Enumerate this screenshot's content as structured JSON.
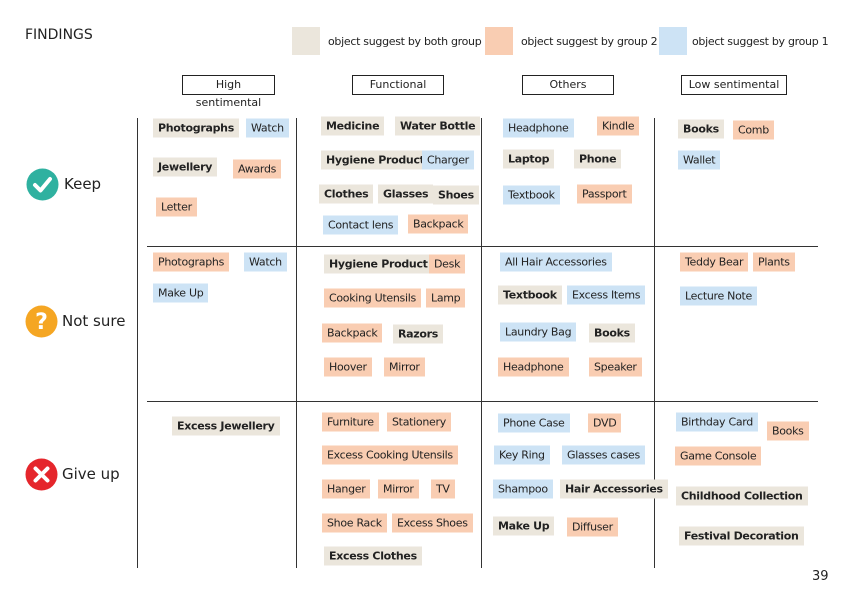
{
  "header": {
    "title": "FINDINGS"
  },
  "legend": [
    {
      "text": "object suggest by both group",
      "color": "#ebe6dc"
    },
    {
      "text": "object suggest by group 2",
      "color": "#f9cdb2"
    },
    {
      "text": "object suggest by group 1",
      "color": "#cde3f5"
    }
  ],
  "columns": [
    "High sentimental",
    "Functional",
    "Others",
    "Low sentimental"
  ],
  "rows": [
    {
      "label": "Keep",
      "cells": [
        [
          {
            "text": "Photographs",
            "color": "#ebe6dc"
          },
          {
            "text": "Watch",
            "color": "#cde3f5"
          },
          {
            "text": "Jewellery",
            "color": "#ebe6dc"
          },
          {
            "text": "Awards",
            "color": "#f9cdb2"
          },
          {
            "text": "Letter",
            "color": "#f9cdb2"
          }
        ],
        [
          {
            "text": "Medicine",
            "color": "#ebe6dc"
          },
          {
            "text": "Water Bottle",
            "color": "#ebe6dc"
          },
          {
            "text": "Hygiene Product",
            "color": "#ebe6dc"
          },
          {
            "text": "Charger",
            "color": "#cde3f5"
          },
          {
            "text": "Clothes",
            "color": "#ebe6dc"
          },
          {
            "text": "Glasses",
            "color": "#ebe6dc"
          },
          {
            "text": "Shoes",
            "color": "#ebe6dc"
          },
          {
            "text": "Contact lens",
            "color": "#cde3f5"
          },
          {
            "text": "Backpack",
            "color": "#f9cdb2"
          }
        ],
        [
          {
            "text": "Headphone",
            "color": "#cde3f5"
          },
          {
            "text": "Kindle",
            "color": "#f9cdb2"
          },
          {
            "text": "Laptop",
            "color": "#ebe6dc"
          },
          {
            "text": "Phone",
            "color": "#ebe6dc"
          },
          {
            "text": "Textbook",
            "color": "#cde3f5"
          },
          {
            "text": "Passport",
            "color": "#f9cdb2"
          }
        ],
        [
          {
            "text": "Books",
            "color": "#ebe6dc"
          },
          {
            "text": "Comb",
            "color": "#f9cdb2"
          },
          {
            "text": "Wallet",
            "color": "#cde3f5"
          }
        ]
      ]
    },
    {
      "label": "Not sure",
      "cells": [
        [
          {
            "text": "Photographs",
            "color": "#f9cdb2"
          },
          {
            "text": "Watch",
            "color": "#cde3f5"
          },
          {
            "text": "Make Up",
            "color": "#cde3f5"
          }
        ],
        [
          {
            "text": "Hygiene Product",
            "color": "#ebe6dc"
          },
          {
            "text": "Desk",
            "color": "#f9cdb2"
          },
          {
            "text": "Cooking Utensils",
            "color": "#f9cdb2"
          },
          {
            "text": "Lamp",
            "color": "#f9cdb2"
          },
          {
            "text": "Backpack",
            "color": "#f9cdb2"
          },
          {
            "text": "Razors",
            "color": "#ebe6dc"
          },
          {
            "text": "Hoover",
            "color": "#f9cdb2"
          },
          {
            "text": "Mirror",
            "color": "#f9cdb2"
          }
        ],
        [
          {
            "text": "All Hair Accessories",
            "color": "#cde3f5"
          },
          {
            "text": "Textbook",
            "color": "#ebe6dc"
          },
          {
            "text": "Excess Items",
            "color": "#cde3f5"
          },
          {
            "text": "Laundry Bag",
            "color": "#cde3f5"
          },
          {
            "text": "Books",
            "color": "#ebe6dc"
          },
          {
            "text": "Headphone",
            "color": "#f9cdb2"
          },
          {
            "text": "Speaker",
            "color": "#f9cdb2"
          }
        ],
        [
          {
            "text": "Teddy Bear",
            "color": "#f9cdb2"
          },
          {
            "text": "Plants",
            "color": "#f9cdb2"
          },
          {
            "text": "Lecture Note",
            "color": "#cde3f5"
          }
        ]
      ]
    },
    {
      "label": "Give up",
      "cells": [
        [
          {
            "text": "Excess Jewellery",
            "color": "#ebe6dc"
          }
        ],
        [
          {
            "text": "Furniture",
            "color": "#f9cdb2"
          },
          {
            "text": "Stationery",
            "color": "#f9cdb2"
          },
          {
            "text": "Excess Cooking Utensils",
            "color": "#f9cdb2"
          },
          {
            "text": "Hanger",
            "color": "#f9cdb2"
          },
          {
            "text": "Mirror",
            "color": "#f9cdb2"
          },
          {
            "text": "TV",
            "color": "#f9cdb2"
          },
          {
            "text": "Shoe Rack",
            "color": "#f9cdb2"
          },
          {
            "text": "Excess Shoes",
            "color": "#f9cdb2"
          },
          {
            "text": "Excess Clothes",
            "color": "#ebe6dc"
          }
        ],
        [
          {
            "text": "Phone Case",
            "color": "#cde3f5"
          },
          {
            "text": "DVD",
            "color": "#f9cdb2"
          },
          {
            "text": "Key Ring",
            "color": "#cde3f5"
          },
          {
            "text": "Glasses cases",
            "color": "#cde3f5"
          },
          {
            "text": "Shampoo",
            "color": "#cde3f5"
          },
          {
            "text": "Hair Accessories",
            "color": "#ebe6dc"
          },
          {
            "text": "Make Up",
            "color": "#ebe6dc"
          },
          {
            "text": "Diffuser",
            "color": "#f9cdb2"
          }
        ],
        [
          {
            "text": "Birthday Card",
            "color": "#cde3f5"
          },
          {
            "text": "Books",
            "color": "#f9cdb2"
          },
          {
            "text": "Game Console",
            "color": "#f9cdb2"
          },
          {
            "text": "Childhood Collection",
            "color": "#ebe6dc"
          },
          {
            "text": "Festival Decoration",
            "color": "#ebe6dc"
          }
        ]
      ]
    }
  ],
  "page_number": "39"
}
